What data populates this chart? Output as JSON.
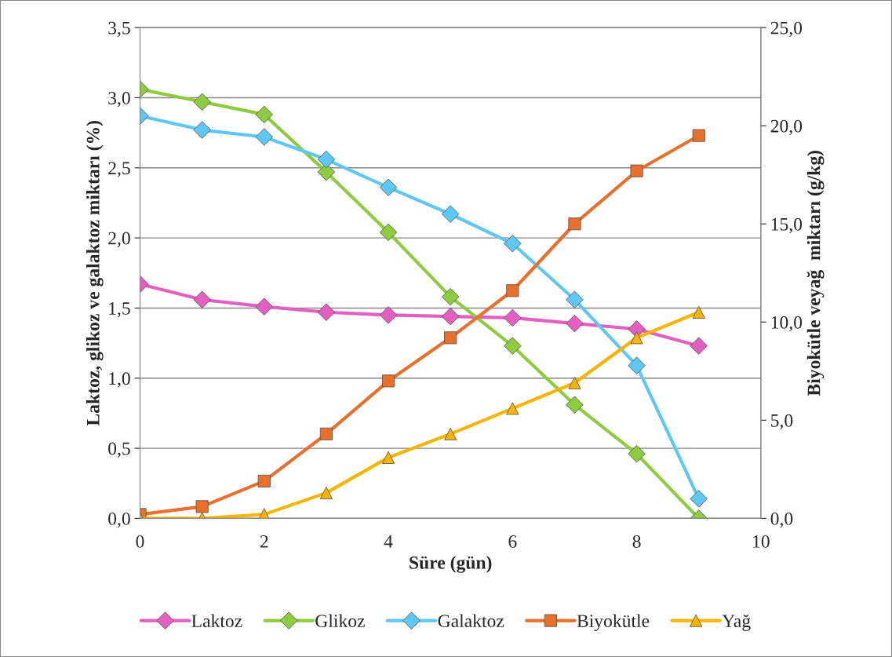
{
  "chart_data": {
    "type": "line",
    "xlabel": "Süre (gün)",
    "ylabel": "Laktoz, glikoz ve galaktoz miktarı (%)",
    "y2label": "Biyokütle veyağ  miktarı (g/kg)",
    "x": [
      0,
      1,
      2,
      3,
      4,
      5,
      6,
      7,
      8,
      9
    ],
    "series": [
      {
        "name": "Laktoz",
        "color": "#e35fc2",
        "marker": "diamond",
        "values": [
          1.67,
          1.56,
          1.51,
          1.47,
          1.45,
          1.44,
          1.43,
          1.39,
          1.35,
          1.23
        ]
      },
      {
        "name": "Glikoz",
        "color": "#8dcc3f",
        "marker": "diamond",
        "values": [
          3.06,
          2.97,
          2.88,
          2.47,
          2.04,
          1.58,
          1.23,
          0.81,
          0.46,
          0.0
        ]
      },
      {
        "name": "Galaktoz",
        "color": "#5ec8f2",
        "marker": "diamond",
        "values": [
          2.87,
          2.77,
          2.72,
          2.56,
          2.36,
          2.17,
          1.96,
          1.56,
          1.09,
          0.14
        ]
      },
      {
        "name": "Biyokütle",
        "color": "#e8702a",
        "marker": "square",
        "axis": "y2",
        "values": [
          0.2,
          0.6,
          1.9,
          4.3,
          7.0,
          9.2,
          11.6,
          15.0,
          17.7,
          19.5
        ]
      },
      {
        "name": "Yağ",
        "color": "#f7b500",
        "marker": "triangle",
        "axis": "y2",
        "values": [
          0.0,
          0.0,
          0.2,
          1.3,
          3.1,
          4.3,
          5.6,
          6.9,
          9.2,
          10.5
        ]
      }
    ],
    "xlim": [
      0,
      10
    ],
    "xticks": [
      0,
      2,
      4,
      6,
      8,
      10
    ],
    "ylim": [
      0,
      3.5
    ],
    "yticks": [
      {
        "value": 0,
        "label": "0,0"
      },
      {
        "value": 0.5,
        "label": "0,5"
      },
      {
        "value": 1,
        "label": "1,0"
      },
      {
        "value": 1.5,
        "label": "1,5"
      },
      {
        "value": 2,
        "label": "2,0"
      },
      {
        "value": 2.5,
        "label": "2,5"
      },
      {
        "value": 3,
        "label": "3,0"
      },
      {
        "value": 3.5,
        "label": "3,5"
      }
    ],
    "y2lim": [
      0,
      25
    ],
    "y2ticks": [
      {
        "value": 0,
        "label": "0,0"
      },
      {
        "value": 5,
        "label": "5,0"
      },
      {
        "value": 10,
        "label": "10,0"
      },
      {
        "value": 15,
        "label": "15,0"
      },
      {
        "value": 20,
        "label": "20,0"
      },
      {
        "value": 25,
        "label": "25,0"
      }
    ],
    "grid": "y",
    "legend": "bottom"
  }
}
